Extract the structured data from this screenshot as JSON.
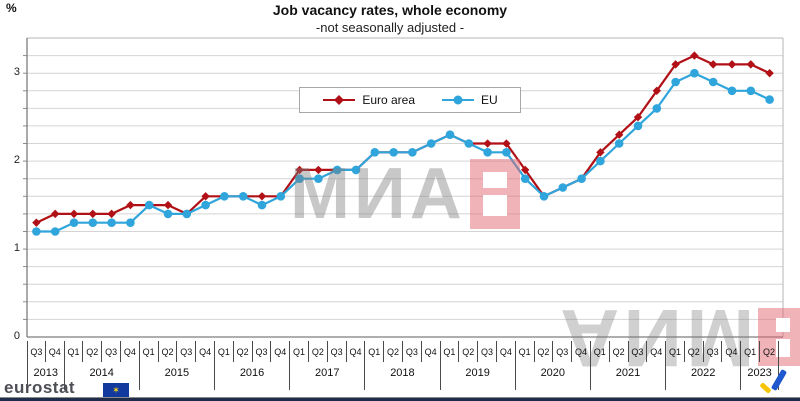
{
  "page": {
    "percent_label": "%",
    "title": "Job vacancy rates, whole economy",
    "subtitle": "-not  seasonally adjusted -"
  },
  "legend": {
    "items": [
      {
        "label": "Euro area",
        "color": "#b11116",
        "marker": "diamond"
      },
      {
        "label": "EU",
        "color": "#2fa5dc",
        "marker": "circle"
      }
    ]
  },
  "chart_data": {
    "type": "line",
    "title": "Job vacancy rates, whole economy",
    "subtitle": "-not  seasonally adjusted -",
    "xlabel": "",
    "ylabel": "%",
    "ylim": [
      0,
      3.4
    ],
    "yticks": [
      0,
      1,
      2,
      3
    ],
    "ytick_labels": [
      "0",
      "1",
      "2",
      "3"
    ],
    "grid": true,
    "grid_step": 0.2,
    "legend_position": "top-center-inside",
    "x_quarters": [
      "Q3",
      "Q4",
      "Q1",
      "Q2",
      "Q3",
      "Q4",
      "Q1",
      "Q2",
      "Q3",
      "Q4",
      "Q1",
      "Q2",
      "Q3",
      "Q4",
      "Q1",
      "Q2",
      "Q3",
      "Q4",
      "Q1",
      "Q2",
      "Q3",
      "Q4",
      "Q1",
      "Q2",
      "Q3",
      "Q4",
      "Q1",
      "Q2",
      "Q3",
      "Q4",
      "Q1",
      "Q2",
      "Q3",
      "Q4",
      "Q1",
      "Q2",
      "Q3",
      "Q4",
      "Q1",
      "Q2"
    ],
    "x_years": [
      {
        "label": "2013",
        "span": 2
      },
      {
        "label": "2014",
        "span": 4
      },
      {
        "label": "2015",
        "span": 4
      },
      {
        "label": "2016",
        "span": 4
      },
      {
        "label": "2017",
        "span": 4
      },
      {
        "label": "2018",
        "span": 4
      },
      {
        "label": "2019",
        "span": 4
      },
      {
        "label": "2020",
        "span": 4
      },
      {
        "label": "2021",
        "span": 4
      },
      {
        "label": "2022",
        "span": 4
      },
      {
        "label": "2023",
        "span": 2
      }
    ],
    "series": [
      {
        "name": "Euro area",
        "color": "#b11116",
        "marker": "diamond",
        "values": [
          1.3,
          1.4,
          1.4,
          1.4,
          1.4,
          1.5,
          1.5,
          1.5,
          1.4,
          1.6,
          1.6,
          1.6,
          1.6,
          1.6,
          1.9,
          1.9,
          1.9,
          1.9,
          2.1,
          2.1,
          2.1,
          2.2,
          2.3,
          2.2,
          2.2,
          2.2,
          1.9,
          1.6,
          1.7,
          1.8,
          2.1,
          2.3,
          2.5,
          2.8,
          3.1,
          3.2,
          3.1,
          3.1,
          3.1,
          3.0
        ]
      },
      {
        "name": "EU",
        "color": "#2fa5dc",
        "marker": "circle",
        "values": [
          1.2,
          1.2,
          1.3,
          1.3,
          1.3,
          1.3,
          1.5,
          1.4,
          1.4,
          1.5,
          1.6,
          1.6,
          1.5,
          1.6,
          1.8,
          1.8,
          1.9,
          1.9,
          2.1,
          2.1,
          2.1,
          2.2,
          2.3,
          2.2,
          2.1,
          2.1,
          1.8,
          1.6,
          1.7,
          1.8,
          2.0,
          2.2,
          2.4,
          2.6,
          2.9,
          3.0,
          2.9,
          2.8,
          2.8,
          2.7
        ]
      }
    ]
  },
  "watermark": {
    "text": "МИА"
  },
  "footer": {
    "brand": "eurostat"
  }
}
